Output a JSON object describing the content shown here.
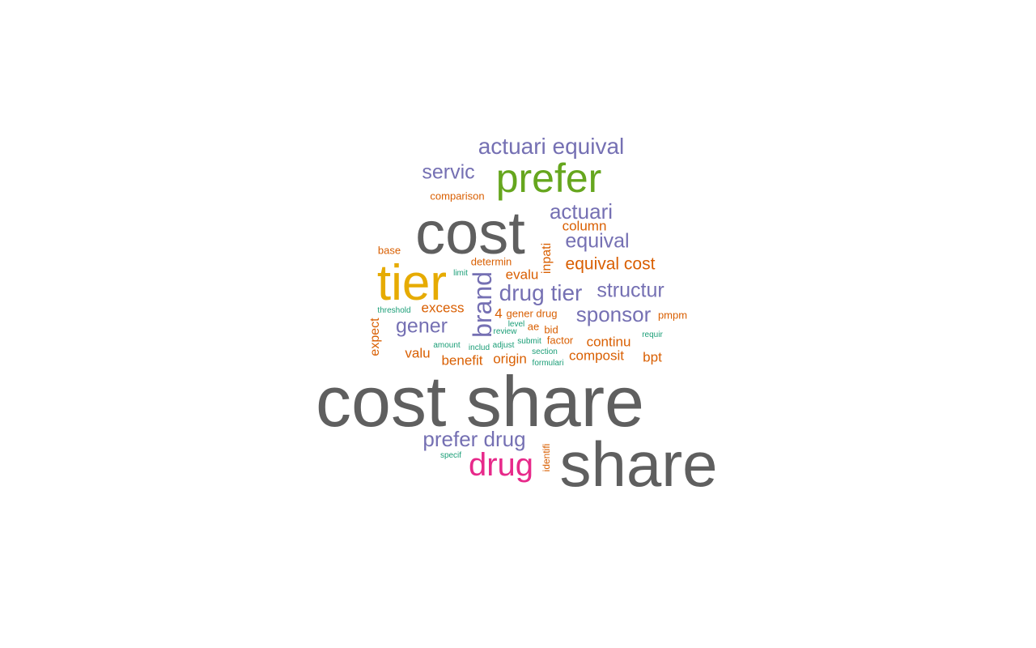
{
  "palette": {
    "gray": "#5f5f5f",
    "purple": "#7570b3",
    "green": "#66a61e",
    "gold": "#e6ab02",
    "magenta": "#e7298a",
    "orange": "#d95f02",
    "teal": "#1b9e77"
  },
  "words": [
    {
      "id": "w00",
      "text": "cost share",
      "color": "gray"
    },
    {
      "id": "w01",
      "text": "share",
      "color": "gray"
    },
    {
      "id": "w02",
      "text": "cost",
      "color": "gray"
    },
    {
      "id": "w03",
      "text": "tier",
      "color": "gold"
    },
    {
      "id": "w04",
      "text": "prefer",
      "color": "green"
    },
    {
      "id": "w05",
      "text": "drug",
      "color": "magenta"
    },
    {
      "id": "w06",
      "text": "actuari equival",
      "color": "purple"
    },
    {
      "id": "w07",
      "text": "prefer drug",
      "color": "purple"
    },
    {
      "id": "w08",
      "text": "brand",
      "color": "purple"
    },
    {
      "id": "w09",
      "text": "drug tier",
      "color": "purple"
    },
    {
      "id": "w10",
      "text": "sponsor",
      "color": "purple"
    },
    {
      "id": "w11",
      "text": "actuari",
      "color": "purple"
    },
    {
      "id": "w12",
      "text": "servic",
      "color": "purple"
    },
    {
      "id": "w13",
      "text": "equival",
      "color": "purple"
    },
    {
      "id": "w14",
      "text": "structur",
      "color": "purple"
    },
    {
      "id": "w15",
      "text": "gener",
      "color": "purple"
    },
    {
      "id": "w16",
      "text": "equival cost",
      "color": "orange"
    },
    {
      "id": "w17",
      "text": "composit",
      "color": "orange"
    },
    {
      "id": "w18",
      "text": "continu",
      "color": "orange"
    },
    {
      "id": "w19",
      "text": "benefit",
      "color": "orange"
    },
    {
      "id": "w20",
      "text": "origin",
      "color": "orange"
    },
    {
      "id": "w21",
      "text": "excess",
      "color": "orange"
    },
    {
      "id": "w22",
      "text": "column",
      "color": "orange"
    },
    {
      "id": "w23",
      "text": "inpati",
      "color": "orange"
    },
    {
      "id": "w24",
      "text": "evalu",
      "color": "orange"
    },
    {
      "id": "w25",
      "text": "valu",
      "color": "orange"
    },
    {
      "id": "w26",
      "text": "bpt",
      "color": "orange"
    },
    {
      "id": "w27",
      "text": "expect",
      "color": "orange"
    },
    {
      "id": "w28",
      "text": "4",
      "color": "orange"
    },
    {
      "id": "w29",
      "text": "determin",
      "color": "orange"
    },
    {
      "id": "w30",
      "text": "gener drug",
      "color": "orange"
    },
    {
      "id": "w31",
      "text": "pmpm",
      "color": "orange"
    },
    {
      "id": "w32",
      "text": "factor",
      "color": "orange"
    },
    {
      "id": "w33",
      "text": "comparison",
      "color": "orange"
    },
    {
      "id": "w34",
      "text": "base",
      "color": "orange"
    },
    {
      "id": "w35",
      "text": "bid",
      "color": "orange"
    },
    {
      "id": "w36",
      "text": "ae",
      "color": "orange"
    },
    {
      "id": "w37",
      "text": "identifi",
      "color": "orange"
    },
    {
      "id": "w38",
      "text": "limit",
      "color": "teal"
    },
    {
      "id": "w39",
      "text": "threshold",
      "color": "teal"
    },
    {
      "id": "w40",
      "text": "level",
      "color": "teal"
    },
    {
      "id": "w41",
      "text": "review",
      "color": "teal"
    },
    {
      "id": "w42",
      "text": "requir",
      "color": "teal"
    },
    {
      "id": "w43",
      "text": "amount",
      "color": "teal"
    },
    {
      "id": "w44",
      "text": "includ",
      "color": "teal"
    },
    {
      "id": "w45",
      "text": "adjust",
      "color": "teal"
    },
    {
      "id": "w46",
      "text": "submit",
      "color": "teal"
    },
    {
      "id": "w47",
      "text": "section",
      "color": "teal"
    },
    {
      "id": "w48",
      "text": "formulari",
      "color": "teal"
    },
    {
      "id": "w49",
      "text": "specif",
      "color": "teal"
    }
  ]
}
